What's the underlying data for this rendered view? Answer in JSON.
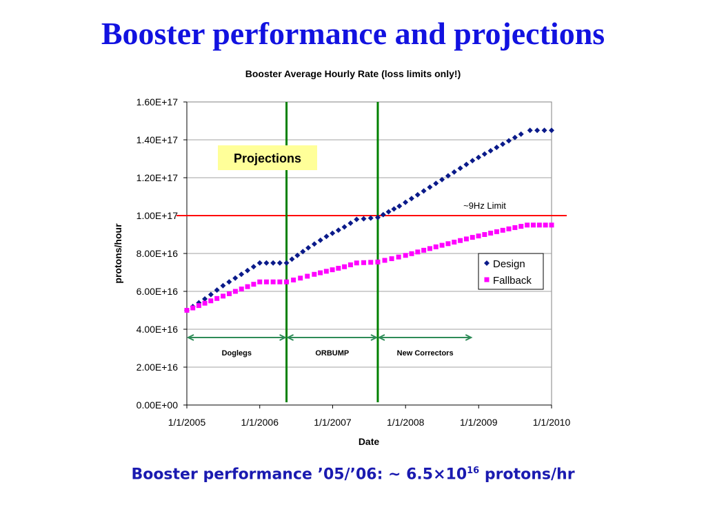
{
  "slide": {
    "title": "Booster performance and projections",
    "bottom_prefix": "Booster performance ’05/’06: ~ 6.5×10",
    "bottom_exponent": "16",
    "bottom_suffix": " protons/hr"
  },
  "chart_data": {
    "type": "scatter",
    "title": "Booster Average Hourly Rate (loss limits only!)",
    "xlabel": "Date",
    "ylabel": "protons/hour",
    "xlim": [
      "2005-01-01",
      "2010-01-01"
    ],
    "ylim": [
      0,
      1.6e+17
    ],
    "x_ticks": [
      {
        "date": "2005-01-01",
        "label": "1/1/2005"
      },
      {
        "date": "2006-01-01",
        "label": "1/1/2006"
      },
      {
        "date": "2007-01-01",
        "label": "1/1/2007"
      },
      {
        "date": "2008-01-01",
        "label": "1/1/2008"
      },
      {
        "date": "2009-01-01",
        "label": "1/1/2009"
      },
      {
        "date": "2010-01-01",
        "label": "1/1/2010"
      }
    ],
    "y_ticks": [
      {
        "value": 0,
        "label": "0.00E+00"
      },
      {
        "value": 2e+16,
        "label": "2.00E+16"
      },
      {
        "value": 4e+16,
        "label": "4.00E+16"
      },
      {
        "value": 6e+16,
        "label": "6.00E+16"
      },
      {
        "value": 8e+16,
        "label": "8.00E+16"
      },
      {
        "value": 1e+17,
        "label": "1.00E+17"
      },
      {
        "value": 1.2e+17,
        "label": "1.20E+17"
      },
      {
        "value": 1.4e+17,
        "label": "1.40E+17"
      },
      {
        "value": 1.6e+17,
        "label": "1.60E+17"
      }
    ],
    "grid": "horizontal",
    "legend_position": "right",
    "series": [
      {
        "name": "Design",
        "color": "#0a1a8a",
        "marker": "diamond",
        "points": [
          [
            "2005-01-01",
            5e+16
          ],
          [
            "2005-04-01",
            5.6e+16
          ],
          [
            "2005-07-01",
            6.3e+16
          ],
          [
            "2005-10-01",
            6.9e+16
          ],
          [
            "2006-01-01",
            7.5e+16
          ],
          [
            "2006-05-15",
            7.5e+16
          ],
          [
            "2006-09-01",
            8.3e+16
          ],
          [
            "2006-12-01",
            8.9e+16
          ],
          [
            "2007-03-01",
            9.4e+16
          ],
          [
            "2007-05-01",
            9.8e+16
          ],
          [
            "2007-08-15",
            9.9e+16
          ],
          [
            "2007-12-01",
            1.05e+17
          ],
          [
            "2008-04-01",
            1.13e+17
          ],
          [
            "2008-08-01",
            1.21e+17
          ],
          [
            "2008-12-01",
            1.29e+17
          ],
          [
            "2009-04-01",
            1.36e+17
          ],
          [
            "2009-08-01",
            1.43e+17
          ],
          [
            "2009-09-15",
            1.45e+17
          ],
          [
            "2010-01-01",
            1.45e+17
          ]
        ]
      },
      {
        "name": "Fallback",
        "color": "#ff00ff",
        "marker": "square",
        "points": [
          [
            "2005-01-01",
            5e+16
          ],
          [
            "2005-05-01",
            5.5e+16
          ],
          [
            "2005-09-01",
            6e+16
          ],
          [
            "2006-01-01",
            6.5e+16
          ],
          [
            "2006-05-15",
            6.5e+16
          ],
          [
            "2006-10-01",
            6.9e+16
          ],
          [
            "2007-03-01",
            7.3e+16
          ],
          [
            "2007-05-01",
            7.5e+16
          ],
          [
            "2007-08-15",
            7.55e+16
          ],
          [
            "2008-01-01",
            7.9e+16
          ],
          [
            "2008-06-01",
            8.35e+16
          ],
          [
            "2008-12-01",
            8.85e+16
          ],
          [
            "2009-06-01",
            9.3e+16
          ],
          [
            "2009-09-01",
            9.5e+16
          ],
          [
            "2010-01-01",
            9.5e+16
          ]
        ]
      }
    ],
    "reference_lines": [
      {
        "kind": "horizontal",
        "value": 1e+17,
        "color": "#ff0000",
        "label": "~9Hz Limit"
      },
      {
        "kind": "vertical",
        "date": "2006-05-15",
        "color": "#008000"
      },
      {
        "kind": "vertical",
        "date": "2007-08-15",
        "color": "#008000"
      }
    ],
    "annotations": {
      "projections_label": "Projections",
      "projections_bg": "#ffff99",
      "spans_y": 3.6e+16,
      "spans_color": "#2e8b57",
      "spans": [
        {
          "from": "2005-01-01",
          "to": "2006-05-15",
          "label": "Doglegs"
        },
        {
          "from": "2006-05-15",
          "to": "2007-08-15",
          "label": "ORBUMP"
        },
        {
          "from": "2007-08-15",
          "to": "2008-12-01",
          "label": "New Correctors"
        }
      ]
    }
  }
}
